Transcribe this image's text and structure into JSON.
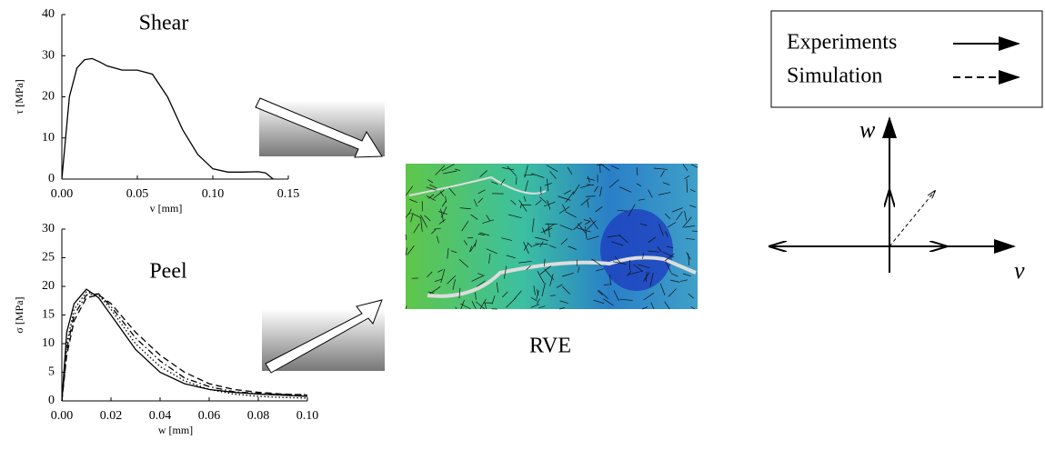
{
  "chart_data": [
    {
      "type": "line",
      "title": "Shear",
      "x_label": "v [mm]",
      "y_label": "τ [MPa]",
      "x": [
        0,
        0.005,
        0.01,
        0.015,
        0.02,
        0.025,
        0.03,
        0.04,
        0.05,
        0.06,
        0.07,
        0.08,
        0.09,
        0.1,
        0.11,
        0.12,
        0.13,
        0.135,
        0.14
      ],
      "series": [
        {
          "color": "#000000",
          "style": "solid",
          "values": [
            0,
            20,
            27,
            29,
            29.3,
            28.5,
            27.5,
            26.5,
            26.5,
            25.5,
            20,
            12,
            6,
            2.5,
            1.7,
            1.7,
            1.8,
            1.5,
            0
          ]
        }
      ],
      "xlim": [
        0,
        0.15
      ],
      "ylim": [
        0,
        40
      ],
      "xticks": [
        {
          "value": 0,
          "label": "0.00"
        },
        {
          "value": 0.05,
          "label": "0.05"
        },
        {
          "value": 0.1,
          "label": "0.10"
        },
        0.15
      ],
      "yticks": [
        0,
        10,
        20,
        30,
        40
      ]
    },
    {
      "type": "line",
      "title": "Peel",
      "x_label": "w [mm]",
      "y_label": "σ [MPa]",
      "x": [
        0,
        0.002,
        0.005,
        0.01,
        0.015,
        0.02,
        0.03,
        0.04,
        0.05,
        0.06,
        0.07,
        0.08,
        0.09,
        0.1
      ],
      "series": [
        {
          "color": "#000000",
          "style": "solid",
          "values": [
            0,
            12,
            17,
            19.5,
            18,
            15,
            9,
            5,
            3,
            2,
            1.5,
            1.2,
            1,
            0.8
          ]
        },
        {
          "color": "#000000",
          "style": "dotted",
          "values": [
            0,
            10,
            16,
            19,
            18.5,
            16,
            10,
            6,
            3.5,
            2,
            1.2,
            0.8,
            0.6,
            0.5
          ]
        },
        {
          "color": "#000000",
          "style": "dashed",
          "values": [
            0,
            8,
            14,
            18,
            18.5,
            17,
            12,
            8,
            5,
            3,
            2,
            1.5,
            1.2,
            1
          ]
        },
        {
          "color": "#000000",
          "style": "dashdot",
          "values": [
            0,
            9,
            15,
            18.5,
            18.7,
            16.5,
            11,
            7,
            4,
            2.5,
            1.6,
            1.3,
            1.1,
            1.1
          ]
        }
      ],
      "xlim": [
        0,
        0.1
      ],
      "ylim": [
        0,
        30
      ],
      "xticks": [
        {
          "value": 0,
          "label": "0.00"
        },
        {
          "value": 0.02,
          "label": "0.02"
        },
        {
          "value": 0.04,
          "label": "0.04"
        },
        {
          "value": 0.06,
          "label": "0.06"
        },
        {
          "value": 0.08,
          "label": "0.08"
        },
        {
          "value": 0.1,
          "label": "0.10"
        }
      ],
      "yticks": [
        0,
        5,
        10,
        15,
        20,
        25,
        30
      ]
    }
  ],
  "diagram": {
    "legend": [
      "Experiments",
      "Simulation"
    ],
    "rve_label": "RVE",
    "axis_labels": [
      "w",
      "v"
    ]
  }
}
